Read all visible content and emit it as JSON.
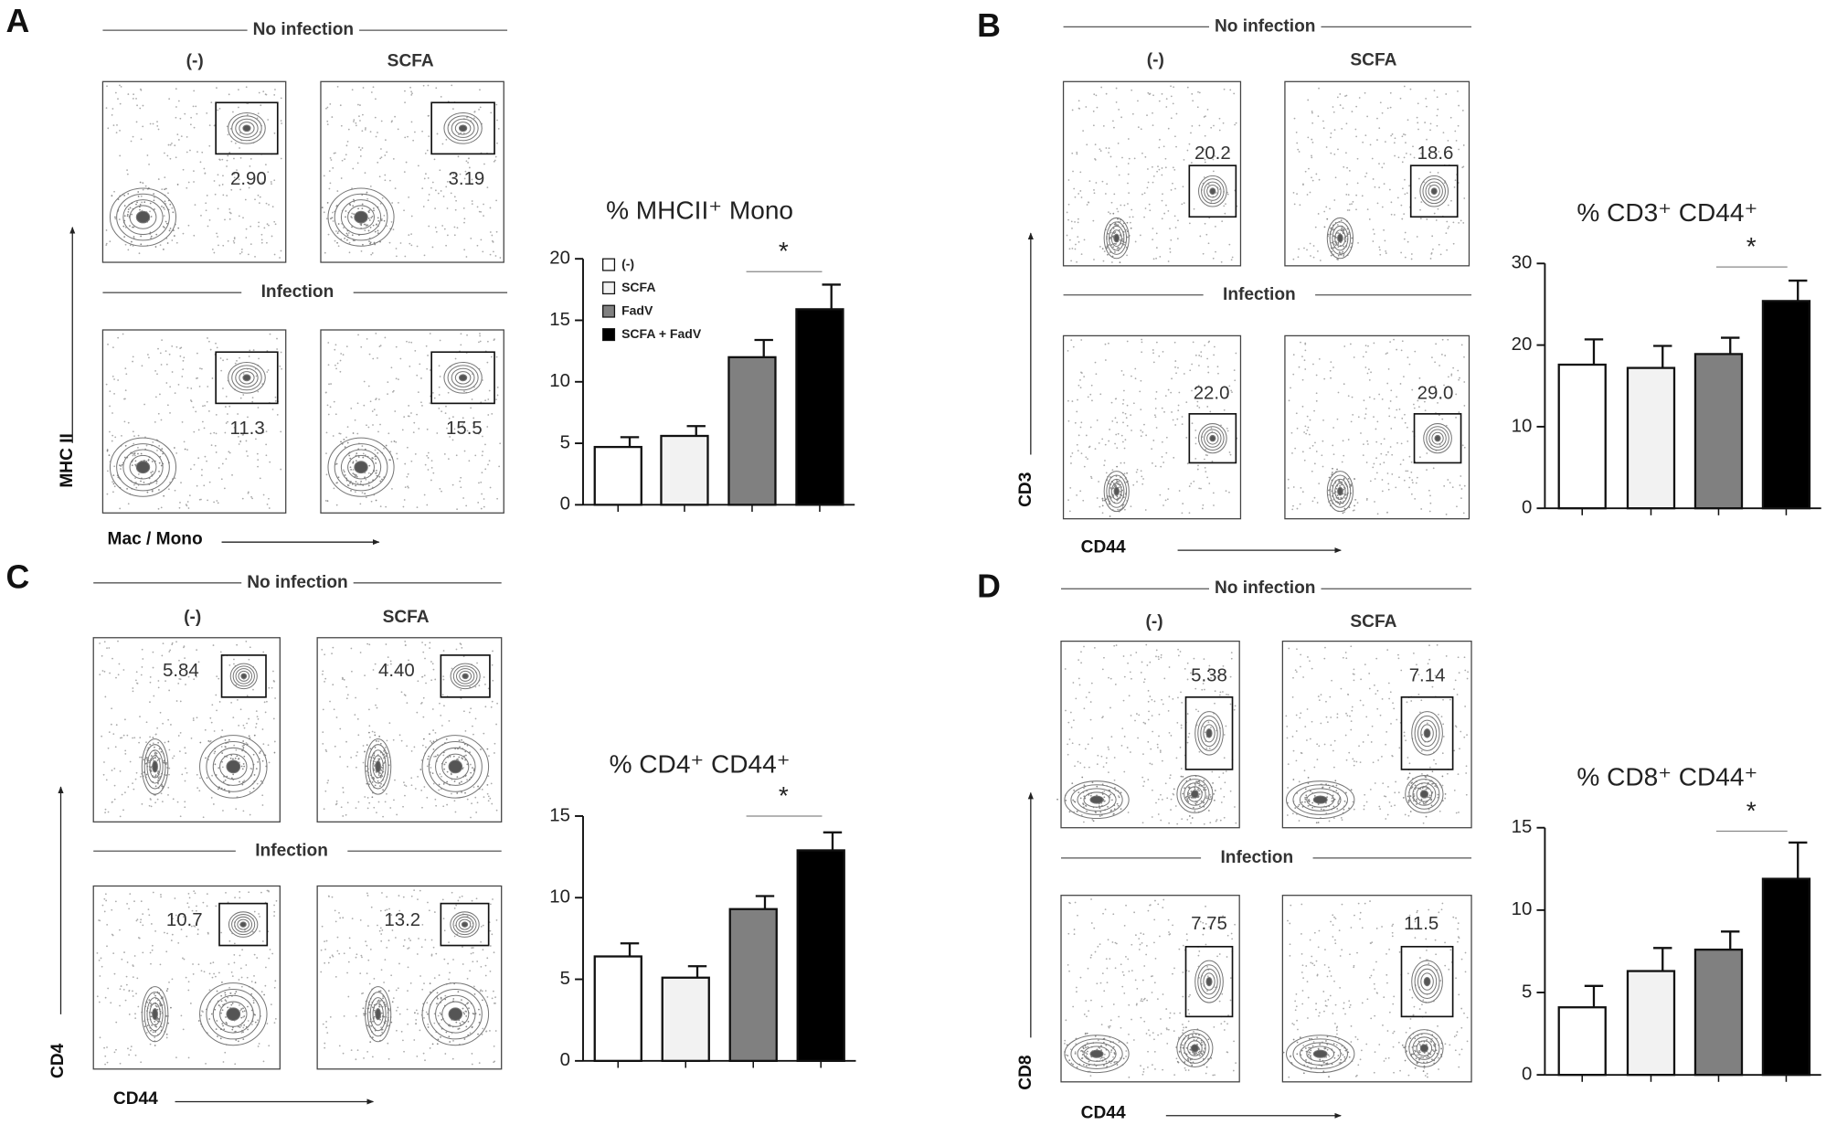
{
  "chart_data": [
    {
      "type": "bar",
      "title": "% MHCII⁺ Mono",
      "categories": [
        "(-)",
        "SCFA",
        "FadV",
        "SCFA + FadV"
      ],
      "values": [
        4.7,
        5.6,
        12.0,
        15.9
      ],
      "errors": [
        0.8,
        0.8,
        1.4,
        2.0
      ],
      "colors": [
        "#ffffff",
        "#f2f2f2",
        "#808080",
        "#000000"
      ],
      "ylim": [
        0,
        20
      ],
      "yticks": [
        0,
        5,
        10,
        15,
        20
      ],
      "annotation": "*",
      "legend": "upper left"
    },
    {
      "type": "bar",
      "title": "% CD3⁺ CD44⁺",
      "categories": [
        null,
        null,
        null,
        null
      ],
      "values": [
        17.6,
        17.2,
        18.9,
        25.4
      ],
      "errors": [
        3.1,
        2.7,
        2.0,
        2.5
      ],
      "colors": [
        "#ffffff",
        "#f2f2f2",
        "#808080",
        "#000000"
      ],
      "ylim": [
        0,
        30
      ],
      "yticks": [
        0,
        10,
        20,
        30
      ],
      "annotation": "*"
    },
    {
      "type": "bar",
      "title": "% CD4⁺ CD44⁺",
      "categories": [
        null,
        null,
        null,
        null
      ],
      "values": [
        6.4,
        5.1,
        9.3,
        12.9
      ],
      "errors": [
        0.8,
        0.7,
        0.8,
        1.1
      ],
      "colors": [
        "#ffffff",
        "#f2f2f2",
        "#808080",
        "#000000"
      ],
      "ylim": [
        0,
        15
      ],
      "yticks": [
        0,
        5,
        10,
        15
      ],
      "annotation": "*"
    },
    {
      "type": "bar",
      "title": "% CD8⁺ CD44⁺",
      "categories": [
        null,
        null,
        null,
        null
      ],
      "values": [
        4.1,
        6.3,
        7.6,
        11.9
      ],
      "errors": [
        1.3,
        1.4,
        1.1,
        2.2
      ],
      "colors": [
        "#ffffff",
        "#f2f2f2",
        "#808080",
        "#000000"
      ],
      "ylim": [
        0,
        15
      ],
      "yticks": [
        0,
        5,
        10,
        15
      ],
      "annotation": "*"
    }
  ],
  "panels": [
    {
      "letter": "A",
      "top_header": "No infection",
      "columns": [
        "(-)",
        "SCFA"
      ],
      "bottom_header": "Infection",
      "gates": [
        "2.90",
        "3.19",
        "11.3",
        "15.5"
      ],
      "y_axis": "MHC II",
      "x_axis": "Mac / Mono"
    },
    {
      "letter": "B",
      "top_header": "No infection",
      "columns": [
        "(-)",
        "SCFA"
      ],
      "bottom_header": "Infection",
      "gates": [
        "20.2",
        "18.6",
        "22.0",
        "29.0"
      ],
      "y_axis": "CD3",
      "x_axis": "CD44"
    },
    {
      "letter": "C",
      "top_header": "No infection",
      "columns": [
        "(-)",
        "SCFA"
      ],
      "bottom_header": "Infection",
      "gates": [
        "5.84",
        "4.40",
        "10.7",
        "13.2"
      ],
      "y_axis": "CD4",
      "x_axis": "CD44"
    },
    {
      "letter": "D",
      "top_header": "No infection",
      "columns": [
        "(-)",
        "SCFA"
      ],
      "bottom_header": "Infection",
      "gates": [
        "5.38",
        "7.14",
        "7.75",
        "11.5"
      ],
      "y_axis": "CD8",
      "x_axis": "CD44"
    }
  ]
}
